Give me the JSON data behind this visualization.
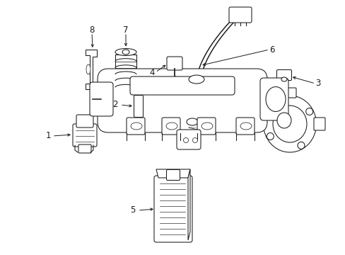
{
  "background_color": "#ffffff",
  "line_color": "#1a1a1a",
  "figure_width": 4.89,
  "figure_height": 3.6,
  "dpi": 100,
  "label_fontsize": 8.5,
  "lw": 0.75
}
